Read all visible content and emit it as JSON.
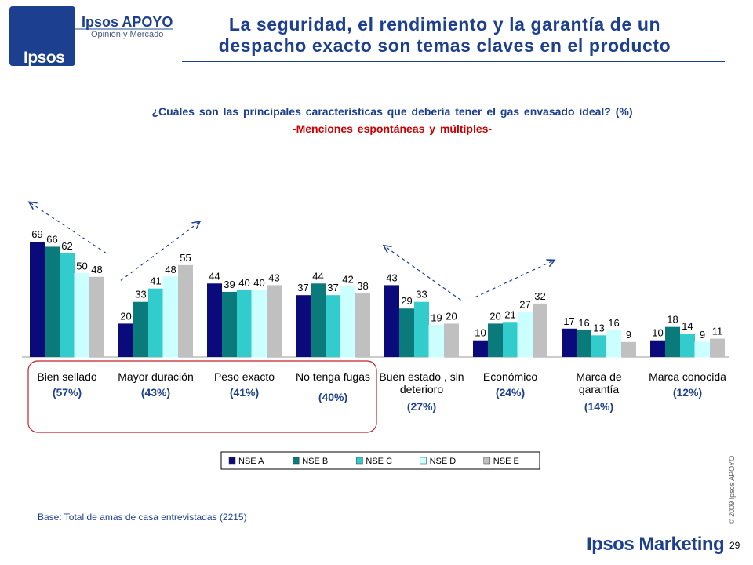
{
  "header": {
    "logo_word": "Ipsos",
    "logo_brand": "Ipsos APOYO",
    "logo_sub": "Opinión y Mercado",
    "title_line1": "La seguridad, el rendimiento y la garantía de un",
    "title_line2": "despacho exacto son temas claves en el producto"
  },
  "colors": {
    "brand": "#1d3f8f",
    "highlight_box": "#c0202a",
    "subtitle": "#cc0000"
  },
  "chart_data": {
    "type": "bar",
    "title": "¿Cuáles son las principales características que debería tener el gas envasado ideal? (%)",
    "subtitle": "-Menciones espontáneas y múltiples-",
    "categories": [
      {
        "lines": [
          "Bien sellado"
        ],
        "total": "(57%)"
      },
      {
        "lines": [
          "Mayor duración"
        ],
        "total": "(43%)"
      },
      {
        "lines": [
          "Peso exacto"
        ],
        "total": "(41%)"
      },
      {
        "lines": [
          "No tenga fugas"
        ],
        "total": "(40%)"
      },
      {
        "lines": [
          "Buen estado , sin",
          "deterioro"
        ],
        "total": "(27%)"
      },
      {
        "lines": [
          "Económico"
        ],
        "total": "(24%)"
      },
      {
        "lines": [
          "Marca de",
          "garantía"
        ],
        "total": "(14%)"
      },
      {
        "lines": [
          "Marca conocida"
        ],
        "total": "(12%)"
      }
    ],
    "series": [
      {
        "name": "NSE A",
        "color": "#0a0a7a",
        "values": [
          69,
          20,
          44,
          37,
          43,
          10,
          17,
          10
        ]
      },
      {
        "name": "NSE B",
        "color": "#0a7a7a",
        "values": [
          66,
          33,
          39,
          44,
          29,
          20,
          16,
          18
        ]
      },
      {
        "name": "NSE C",
        "color": "#33cccc",
        "values": [
          62,
          41,
          40,
          37,
          33,
          21,
          13,
          14
        ]
      },
      {
        "name": "NSE D",
        "color": "#ccffff",
        "values": [
          50,
          48,
          40,
          42,
          19,
          27,
          16,
          9
        ]
      },
      {
        "name": "NSE E",
        "color": "#c0c0c0",
        "values": [
          48,
          55,
          43,
          38,
          20,
          32,
          9,
          11
        ]
      }
    ],
    "ylim": [
      0,
      75
    ],
    "grid": false,
    "legend_position": "bottom",
    "annotations": [
      {
        "type": "trend-arrow",
        "category": 0,
        "direction": "up-left"
      },
      {
        "type": "trend-arrow",
        "category": 1,
        "direction": "up-right"
      },
      {
        "type": "trend-arrow",
        "category": 4,
        "direction": "up-left"
      },
      {
        "type": "trend-arrow",
        "category": 5,
        "direction": "up-right"
      },
      {
        "type": "highlight-box",
        "categories": [
          0,
          1,
          2,
          3
        ]
      }
    ]
  },
  "footer": {
    "base_text": "Base: Total de amas de casa entrevistadas (2215)",
    "copyright": "© 2009 Ipsos APOYO",
    "marketing": "Ipsos Marketing",
    "page_number": "29"
  }
}
